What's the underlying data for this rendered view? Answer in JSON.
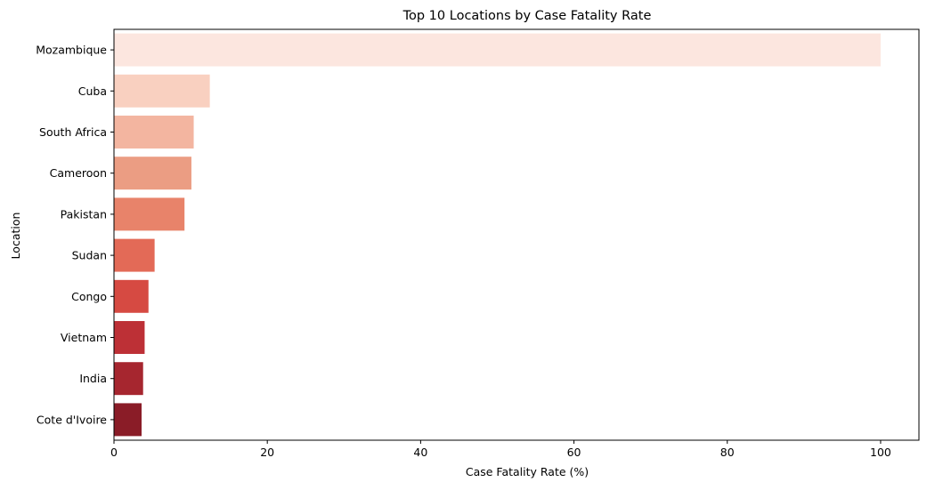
{
  "chart_data": {
    "type": "bar",
    "orientation": "horizontal",
    "title": "Top 10 Locations by Case Fatality Rate",
    "xlabel": "Case Fatality Rate (%)",
    "ylabel": "Location",
    "xlim": [
      0,
      105
    ],
    "xticks": [
      0,
      20,
      40,
      60,
      80,
      100
    ],
    "grid": false,
    "categories": [
      "Mozambique",
      "Cuba",
      "South Africa",
      "Cameroon",
      "Pakistan",
      "Sudan",
      "Congo",
      "Vietnam",
      "India",
      "Cote d'Ivoire"
    ],
    "values": [
      100,
      12.5,
      10.4,
      10.1,
      9.2,
      5.3,
      4.5,
      4.0,
      3.8,
      3.6
    ],
    "colors": [
      "#fce6df",
      "#f9d0c0",
      "#f3b5a0",
      "#eb9d83",
      "#e8836a",
      "#e36a57",
      "#d64a42",
      "#bd3036",
      "#a6262f",
      "#8a1c27"
    ]
  }
}
